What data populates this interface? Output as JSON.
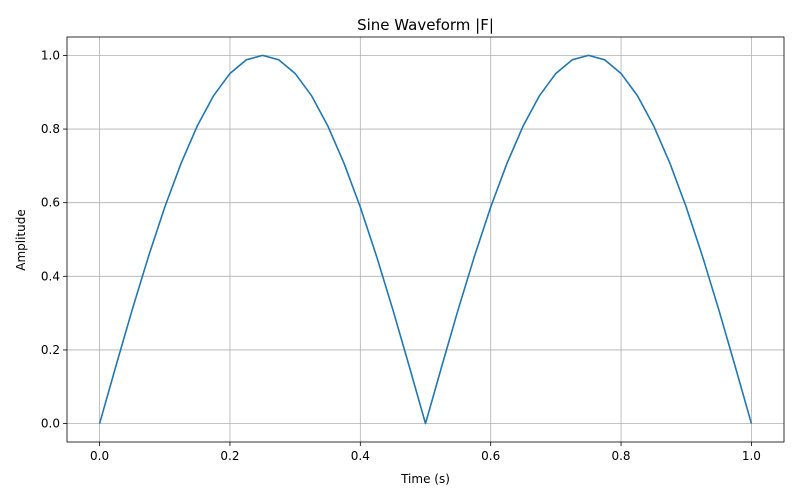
{
  "chart_data": {
    "type": "line",
    "title": "Sine Waveform |F|",
    "xlabel": "Time (s)",
    "ylabel": "Amplitude",
    "xlim": [
      -0.05,
      1.05
    ],
    "ylim": [
      -0.05,
      1.05
    ],
    "xticks": [
      0.0,
      0.2,
      0.4,
      0.6,
      0.8,
      1.0
    ],
    "xtick_labels": [
      "0.0",
      "0.2",
      "0.4",
      "0.6",
      "0.8",
      "1.0"
    ],
    "yticks": [
      0.0,
      0.2,
      0.4,
      0.6,
      0.8,
      1.0
    ],
    "ytick_labels": [
      "0.0",
      "0.2",
      "0.4",
      "0.6",
      "0.8",
      "1.0"
    ],
    "grid": true,
    "series": [
      {
        "color": "#1f77b4",
        "x": [
          0.0,
          0.025,
          0.05,
          0.075,
          0.1,
          0.125,
          0.15,
          0.175,
          0.2,
          0.225,
          0.25,
          0.275,
          0.3,
          0.325,
          0.35,
          0.375,
          0.4,
          0.425,
          0.45,
          0.475,
          0.5,
          0.525,
          0.55,
          0.575,
          0.6,
          0.625,
          0.65,
          0.675,
          0.7,
          0.725,
          0.75,
          0.775,
          0.8,
          0.825,
          0.85,
          0.875,
          0.9,
          0.925,
          0.95,
          0.975,
          1.0
        ],
        "y": [
          0.0,
          0.156,
          0.309,
          0.454,
          0.588,
          0.707,
          0.809,
          0.891,
          0.951,
          0.988,
          1.0,
          0.988,
          0.951,
          0.891,
          0.809,
          0.707,
          0.588,
          0.454,
          0.309,
          0.156,
          0.0,
          0.156,
          0.309,
          0.454,
          0.588,
          0.707,
          0.809,
          0.891,
          0.951,
          0.988,
          1.0,
          0.988,
          0.951,
          0.891,
          0.809,
          0.707,
          0.588,
          0.454,
          0.309,
          0.156,
          0.0
        ]
      }
    ]
  }
}
